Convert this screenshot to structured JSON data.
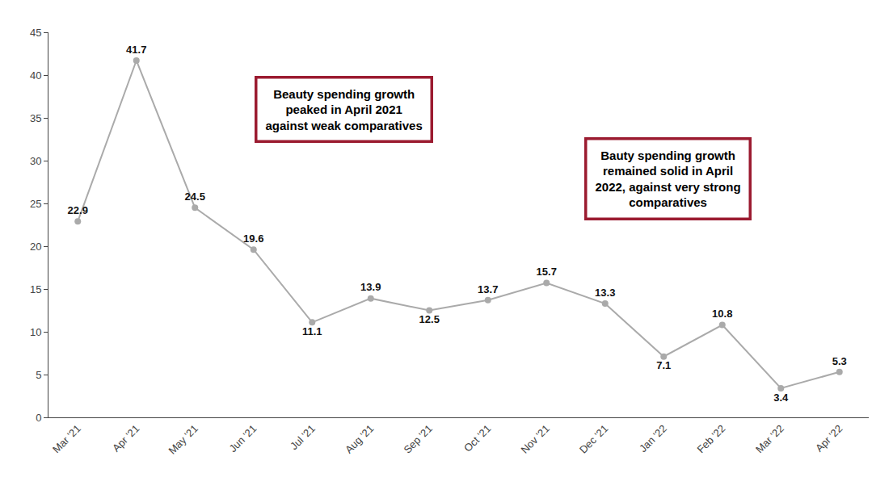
{
  "chart_data": {
    "type": "line",
    "categories": [
      "Mar '21",
      "Apr '21",
      "May '21",
      "Jun '21",
      "Jul '21",
      "Aug '21",
      "Sep '21",
      "Oct '21",
      "Nov '21",
      "Dec '21",
      "Jan '22",
      "Feb '22",
      "Mar '22",
      "Apr '22"
    ],
    "values": [
      22.9,
      41.7,
      24.5,
      19.6,
      11.1,
      13.9,
      12.5,
      13.7,
      15.7,
      13.3,
      7.1,
      10.8,
      3.4,
      5.3
    ],
    "color": "#aaaaaa",
    "marker": "circle",
    "ylim": [
      0,
      45
    ],
    "yticks": [
      0,
      5,
      10,
      15,
      20,
      25,
      30,
      35,
      40,
      45
    ],
    "grid": false,
    "data_labels": true,
    "annotations": [
      {
        "text": "Beauty spending growth\npeaked in April 2021\nagainst weak comparatives",
        "color": "#9B1B30"
      },
      {
        "text": "Bauty spending growth\nremained solid in April\n2022, against very strong\ncomparatives",
        "color": "#9B1B30"
      }
    ]
  }
}
